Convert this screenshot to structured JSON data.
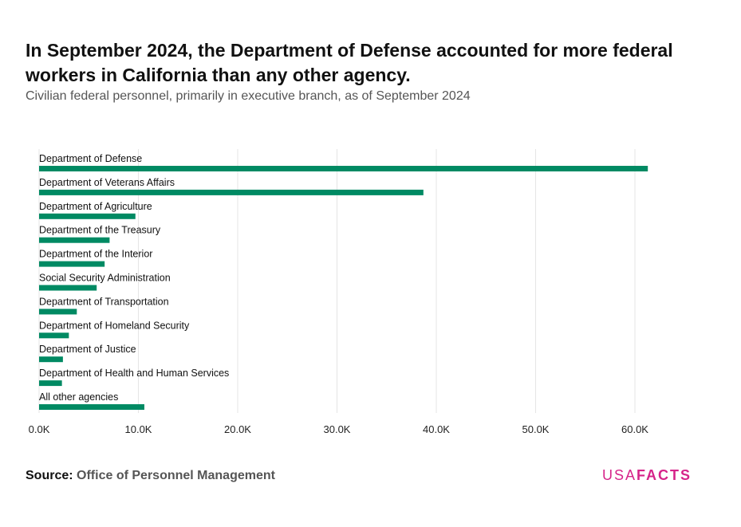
{
  "header": {
    "title": "In September 2024, the Department of Defense accounted for more federal workers in California than any other agency.",
    "subtitle": "Civilian federal personnel, primarily in executive branch, as of September 2024"
  },
  "footer": {
    "source_label": "Source:",
    "source_text": "Office of Personnel Management",
    "logo_part1": "USA",
    "logo_part2": "FACTS"
  },
  "colors": {
    "bar": "#008a63",
    "grid": "#e5e5e5",
    "logo": "#d6248a"
  },
  "chart_data": {
    "type": "bar",
    "orientation": "horizontal",
    "categories": [
      "Department of Defense",
      "Department of Veterans Affairs",
      "Department of Agriculture",
      "Department of the Treasury",
      "Department of the Interior",
      "Social Security Administration",
      "Department of Transportation",
      "Department of Homeland Security",
      "Department of Justice",
      "Department of Health and Human Services",
      "All other agencies"
    ],
    "values": [
      61300,
      38700,
      9700,
      7100,
      6600,
      5800,
      3800,
      3000,
      2400,
      2300,
      10600
    ],
    "xlim": [
      0,
      65000
    ],
    "xticks": [
      0,
      10000,
      20000,
      30000,
      40000,
      50000,
      60000
    ],
    "xtick_labels": [
      "0.0K",
      "10.0K",
      "20.0K",
      "30.0K",
      "40.0K",
      "50.0K",
      "60.0K"
    ],
    "grid": true,
    "legend": "none"
  }
}
